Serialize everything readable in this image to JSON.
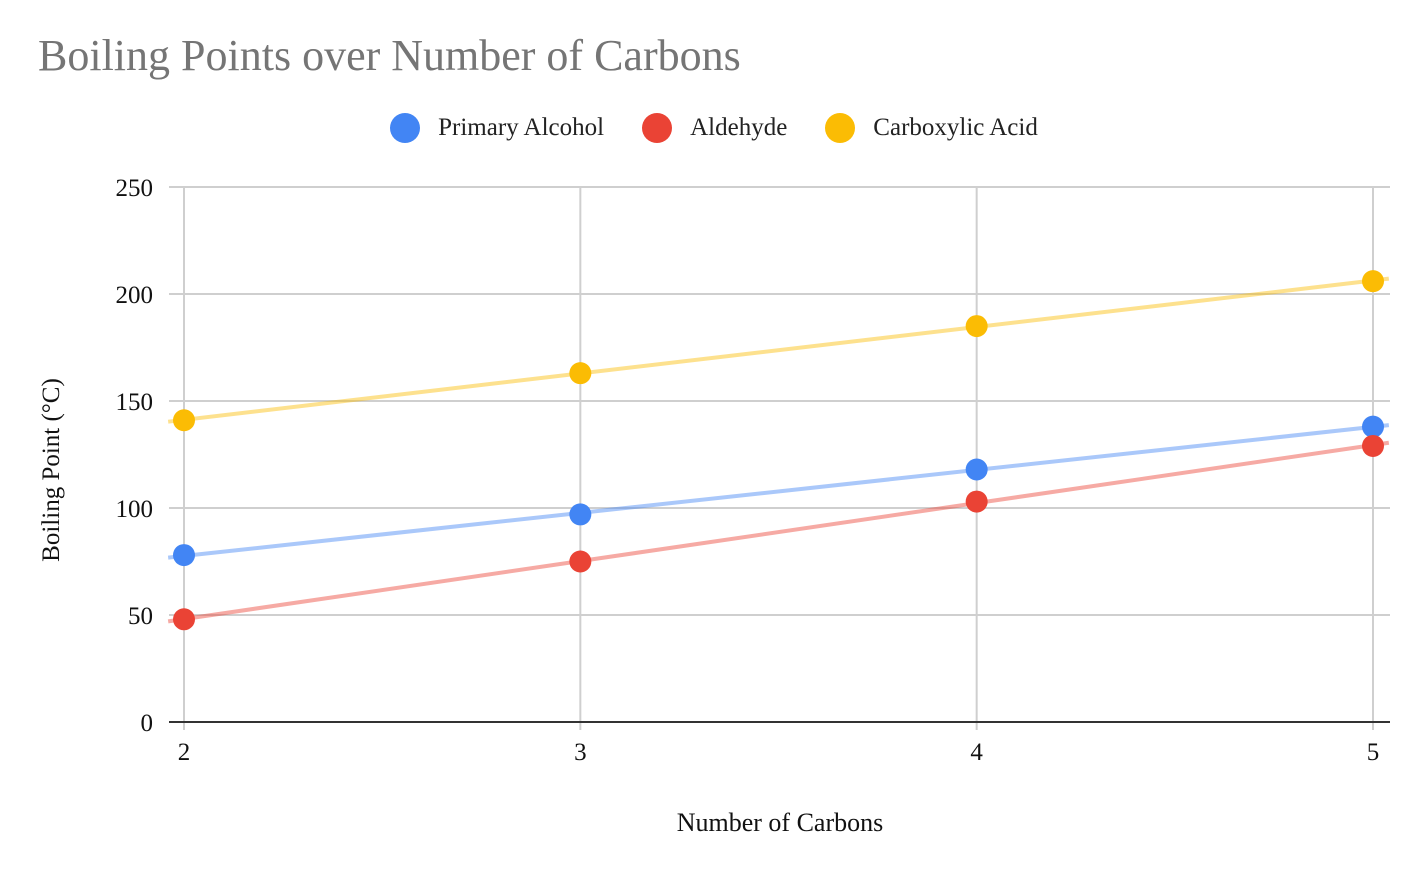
{
  "chart_data": {
    "type": "scatter",
    "title": "Boiling Points over Number of Carbons",
    "xlabel": "Number of Carbons",
    "ylabel": "Boiling Point (°C)",
    "x": [
      2,
      3,
      4,
      5
    ],
    "xticks": [
      "2",
      "3",
      "4",
      "5"
    ],
    "ylim": [
      0,
      250
    ],
    "yticks": [
      "0",
      "50",
      "100",
      "150",
      "200",
      "250"
    ],
    "grid": true,
    "legend_position": "top",
    "trendlines": true,
    "series": [
      {
        "name": "Primary Alcohol",
        "color": "#4285F4",
        "values": [
          78,
          97,
          118,
          138
        ]
      },
      {
        "name": "Aldehyde",
        "color": "#EA4335",
        "values": [
          48,
          75,
          103,
          129
        ]
      },
      {
        "name": "Carboxylic Acid",
        "color": "#FBBC04",
        "values": [
          141,
          163,
          185,
          206
        ]
      }
    ]
  }
}
